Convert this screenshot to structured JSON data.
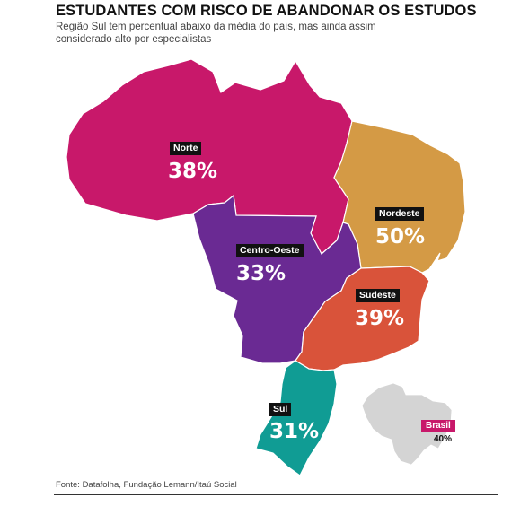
{
  "header": {
    "title": "ESTUDANTES COM RISCO DE ABANDONAR OS ESTUDOS",
    "subtitle": "Região Sul tem percentual abaixo da média do país, mas ainda assim considerado alto por especialistas"
  },
  "regions": [
    {
      "name": "Norte",
      "value": "38%",
      "color": "#c8186a"
    },
    {
      "name": "Nordeste",
      "value": "50%",
      "color": "#d49a45"
    },
    {
      "name": "Centro-Oeste",
      "value": "33%",
      "color": "#6a2a93"
    },
    {
      "name": "Sudeste",
      "value": "39%",
      "color": "#d9533a"
    },
    {
      "name": "Sul",
      "value": "31%",
      "color": "#109c94"
    }
  ],
  "national": {
    "label": "Brasil",
    "value": "40%",
    "color": "#c8186a",
    "map_color": "#d4d4d4"
  },
  "footer": {
    "source": "Fonte: Datafolha, Fundação Lemann/Itaú Social"
  },
  "chart_data": {
    "type": "choropleth map",
    "categories": [
      "Norte",
      "Nordeste",
      "Centro-Oeste",
      "Sudeste",
      "Sul",
      "Brasil"
    ],
    "values": [
      38,
      50,
      33,
      39,
      31,
      40
    ],
    "unit": "%"
  }
}
